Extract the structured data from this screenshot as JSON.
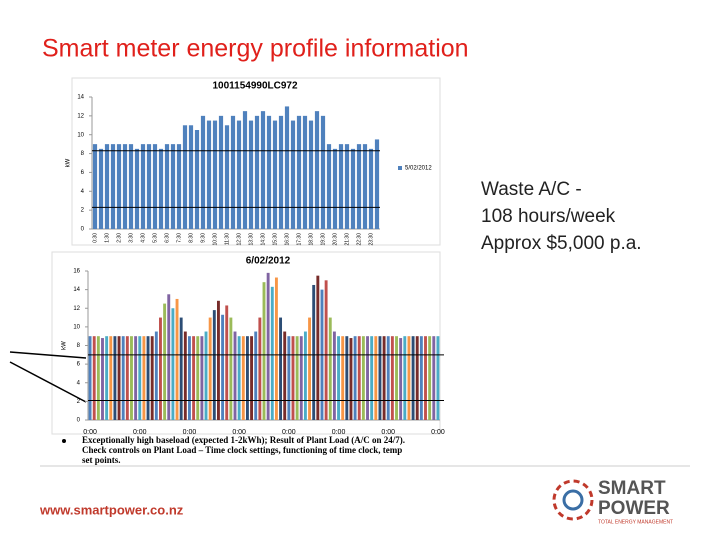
{
  "slide": {
    "title": "Smart meter energy profile information",
    "note_lines": [
      "Waste A/C -",
      "108 hours/week",
      "Approx $5,000 p.a."
    ],
    "bullet_lines": [
      "Exceptionally high baseload (expected 1-2kWh); Result of Plant Load (A/C on 24/7).",
      "Check controls on Plant Load – Time clock settings, functioning of time clock, temp",
      "set points."
    ],
    "footer_url": "www.smartpower.co.nz",
    "logo": {
      "line1": "SMART",
      "line2": "POWER",
      "tagline": "TOTAL ENERGY MANAGEMENT"
    }
  },
  "chart_data": [
    {
      "type": "bar",
      "title": "1001154990LC972",
      "ylabel": "kW",
      "legend": "5/02/2012",
      "color": "#4f81bd",
      "categories": [
        "0:30",
        null,
        "1:30",
        null,
        "2:30",
        null,
        "3:30",
        null,
        "4:30",
        null,
        "5:30",
        null,
        "6:30",
        null,
        "7:30",
        null,
        "8:30",
        null,
        "9:30",
        null,
        "10:30",
        null,
        "11:30",
        null,
        "12:30",
        null,
        "13:30",
        null,
        "14:30",
        null,
        "15:30",
        null,
        "16:30",
        null,
        "17:30",
        null,
        "18:30",
        null,
        "19:30",
        null,
        "20:30",
        null,
        "21:30",
        null,
        "22:30",
        null,
        "23:30",
        null
      ],
      "values": [
        9,
        8.5,
        9,
        9,
        9,
        9,
        9,
        8.5,
        9,
        9,
        9,
        8.5,
        9,
        9,
        9,
        11,
        11,
        10.5,
        12,
        11.5,
        11.5,
        12,
        11,
        12,
        11.5,
        12.5,
        11.5,
        12,
        12.5,
        12,
        11.5,
        12,
        13,
        11.5,
        12,
        12,
        11.5,
        12.5,
        12,
        9,
        8.5,
        9,
        9,
        8.5,
        9,
        9,
        8.5,
        9.5
      ],
      "ylim": [
        0,
        14
      ],
      "yticks": [
        0,
        2,
        4,
        6,
        8,
        10,
        12,
        14
      ],
      "reference_lines": [
        8.3,
        2.3
      ]
    },
    {
      "type": "bar",
      "title": "6/02/2012",
      "ylabel": "kW",
      "colors": [
        "#4f81bd",
        "#c0504d",
        "#9bbb59",
        "#8064a2",
        "#4bacc6",
        "#f79646",
        "#2c4d75",
        "#772c2a"
      ],
      "categories": [
        "0:00",
        null,
        null,
        null,
        null,
        null,
        null,
        null,
        null,
        null,
        null,
        null,
        "0:00",
        null,
        null,
        null,
        null,
        null,
        null,
        null,
        null,
        null,
        null,
        null,
        "0:00",
        null,
        null,
        null,
        null,
        null,
        null,
        null,
        null,
        null,
        null,
        null,
        "0:00",
        null,
        null,
        null,
        null,
        null,
        null,
        null,
        null,
        null,
        null,
        null,
        "0:00",
        null,
        null,
        null,
        null,
        null,
        null,
        null,
        null,
        null,
        null,
        null,
        "0:00",
        null,
        null,
        null,
        null,
        null,
        null,
        null,
        null,
        null,
        null,
        null,
        "0:00",
        null,
        null,
        null,
        null,
        null,
        null,
        null,
        null,
        null,
        null,
        null,
        "0:00"
      ],
      "values": [
        9,
        9,
        9,
        8.8,
        9,
        9,
        9,
        9,
        9,
        9,
        9,
        9,
        9,
        9,
        9,
        9,
        9.5,
        11,
        12.5,
        13.5,
        12,
        13,
        11,
        9.5,
        9,
        9,
        9,
        9,
        9.5,
        11,
        11.8,
        12.8,
        11.3,
        12.3,
        11,
        9.5,
        9,
        9,
        9,
        9,
        9.5,
        11,
        14.8,
        15.8,
        14.3,
        15.3,
        11,
        9.5,
        9,
        9,
        9,
        9,
        9.5,
        11,
        14.5,
        15.5,
        14,
        15,
        11,
        9.5,
        9,
        9,
        9,
        8.8,
        9,
        9,
        9,
        9,
        9,
        9,
        9,
        9,
        9,
        9,
        9,
        8.8,
        9,
        9,
        9,
        9,
        9,
        9,
        9,
        9,
        9
      ],
      "ylim": [
        0,
        16
      ],
      "yticks": [
        0,
        2,
        4,
        6,
        8,
        10,
        12,
        14,
        16
      ],
      "reference_lines": [
        7.0,
        2.1
      ]
    }
  ]
}
